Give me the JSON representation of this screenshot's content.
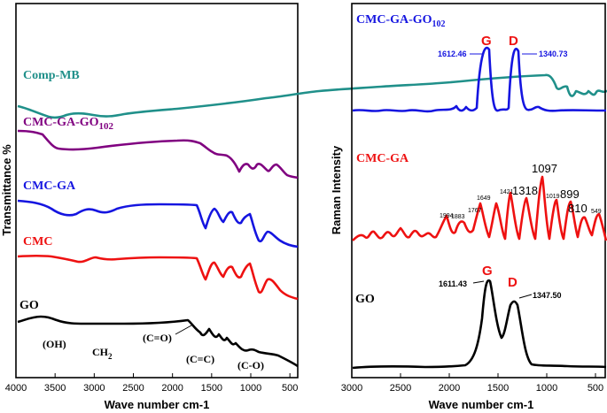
{
  "chart_data": [
    {
      "type": "line",
      "title": "",
      "xlabel": "Wave number cm-1",
      "ylabel": "Transmittance %",
      "x_range": [
        4000,
        400
      ],
      "x_ticks": [
        4000,
        3500,
        3000,
        2500,
        2000,
        1500,
        1000,
        500
      ],
      "series": [
        {
          "name": "Comp-MB",
          "label_main": "Comp-MB",
          "label_sub": "",
          "color": "#20908a"
        },
        {
          "name": "CMC-GA-GO102",
          "label_main": "CMC-GA-GO",
          "label_sub": "102",
          "color": "#800080"
        },
        {
          "name": "CMC-GA",
          "label_main": "CMC-GA",
          "label_sub": "",
          "color": "#1515e0"
        },
        {
          "name": "CMC",
          "label_main": "CMC",
          "label_sub": "",
          "color": "#ee1111"
        },
        {
          "name": "GO",
          "label_main": "GO",
          "label_sub": "",
          "color": "#000000"
        }
      ],
      "annotations": {
        "oh": "(OH)",
        "ch2_main": "CH",
        "ch2_sub": "2",
        "co_double": "(C=O)",
        "cc_double": "(C=C)",
        "co_single": "(C-O)"
      }
    },
    {
      "type": "line",
      "title": "",
      "xlabel": "Wave number cm-1",
      "ylabel": "Raman Intensity",
      "x_range": [
        3000,
        400
      ],
      "x_ticks": [
        3000,
        2500,
        2000,
        1500,
        1000,
        500
      ],
      "series": [
        {
          "name": "CMC-GA-GO102",
          "label_main": "CMC-GA-GO",
          "label_sub": "102",
          "color": "#1515e0",
          "peaks": [
            {
              "x": 1612.46,
              "label": "1612.46"
            },
            {
              "x": 1340.73,
              "label": "1340.73"
            }
          ]
        },
        {
          "name": "CMC-GA",
          "label_main": "CMC-GA",
          "label_sub": "",
          "color": "#ee1111",
          "peaks_small": [
            "1994",
            "1883",
            "1767",
            "1649",
            "1421",
            "1019",
            "549"
          ],
          "peaks_large": [
            "1318",
            "1097",
            "899",
            "810"
          ]
        },
        {
          "name": "GO",
          "label_main": "GO",
          "label_sub": "",
          "color": "#000000",
          "peaks": [
            {
              "x": 1611.43,
              "label": "1611.43"
            },
            {
              "x": 1347.5,
              "label": "1347.50"
            }
          ]
        }
      ],
      "band_labels": {
        "g": "G",
        "d": "D"
      }
    }
  ]
}
